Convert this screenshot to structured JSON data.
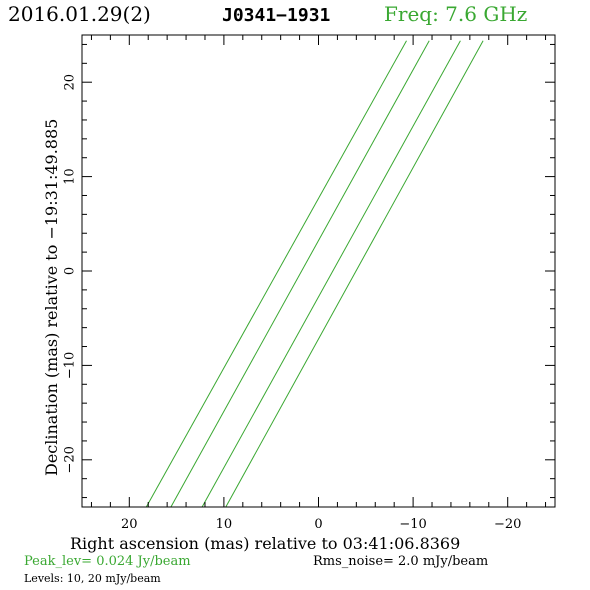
{
  "header": {
    "date": "2016.01.29(2)",
    "source": "J0341−1931",
    "freq": "Freq: 7.6 GHz"
  },
  "footer": {
    "peak": "Peak_lev=  0.024 Jy/beam",
    "rms": "Rms_noise=  2.0 mJy/beam",
    "levels": "Levels:  10,  20 mJy/beam"
  },
  "colors": {
    "contour": "#3aa832",
    "axes": "#000000",
    "freq_text": "#3aa832"
  },
  "chart_data": {
    "type": "line",
    "xlabel": "Right ascension (mas) relative to 03:41:06.8369",
    "ylabel": "Declination (mas) relative to −19:31:49.885",
    "xlim": [
      25,
      -25
    ],
    "ylim": [
      -25,
      25
    ],
    "xticks": [
      20,
      10,
      0,
      -10,
      -20
    ],
    "xtick_labels": [
      "20",
      "10",
      "0",
      "−10",
      "−20"
    ],
    "yticks": [
      20,
      10,
      0,
      -10,
      -20
    ],
    "ytick_labels": [
      "20",
      "10",
      "0",
      "−10",
      "−20"
    ],
    "contour_levels_mJy": [
      10,
      20
    ],
    "series": [
      {
        "x": [
          18.2,
          -9.3
        ],
        "y": [
          -25,
          24.4
        ]
      },
      {
        "x": [
          15.6,
          -11.7
        ],
        "y": [
          -25,
          24.4
        ]
      },
      {
        "x": [
          12.3,
          -15.0
        ],
        "y": [
          -25,
          24.4
        ]
      },
      {
        "x": [
          9.8,
          -17.4
        ],
        "y": [
          -25,
          24.4
        ]
      }
    ]
  }
}
